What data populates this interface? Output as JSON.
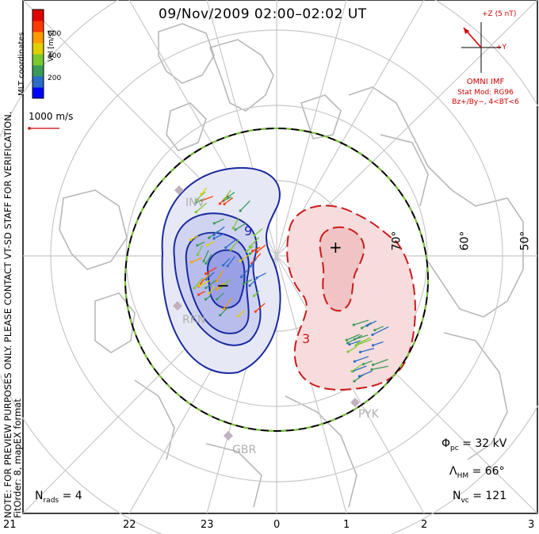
{
  "title": "09/Nov/2009 02:00–02:02 UT",
  "imf": {
    "bz_label": "+Z (5 nT)",
    "by_label": "+Y",
    "source": "OMNI IMF",
    "stat_model": "Stat Mod: RG96",
    "condition": "Bz+/By−, 4<BT<6"
  },
  "colorbar": {
    "title": "Vel [m/s]",
    "ticks": [
      "600",
      "400",
      "200"
    ],
    "colors": [
      "#0000ff",
      "#2a6cc8",
      "#3a9a5a",
      "#7ac930",
      "#e0d000",
      "#ff9a00",
      "#ff3a00",
      "#e00000"
    ]
  },
  "coordinates_label": "MLT coordinates",
  "vector_scale": "1000 m/s",
  "note_line1": "NOTE: FOR PREVIEW PURPOSES ONLY. PLEASE CONTACT VT-SD STAFF FOR VERIFICATION.",
  "note_line2": "FitOrder: 8, mapEX format",
  "latitude_labels": [
    "70°",
    "60°",
    "50°"
  ],
  "mlt_ticks": [
    "21",
    "22",
    "23",
    "0",
    "1",
    "2",
    "3"
  ],
  "sites": [
    "INV",
    "RKN",
    "GBR",
    "PYK"
  ],
  "potential_labels": {
    "negative_contour": "9",
    "positive_contour": "3",
    "minimum": "−",
    "maximum": "+"
  },
  "stats": {
    "phi_pc": {
      "symbol": "Φ",
      "sub": "pc",
      "value": "= 32 kV"
    },
    "lambda_hm": {
      "symbol": "Λ",
      "sub": "HM",
      "value": "= 66°"
    },
    "n_vc": {
      "symbol": "N",
      "sub": "vc",
      "value": "= 121"
    },
    "n_rads": {
      "symbol": "N",
      "sub": "rads",
      "value": "= 4"
    }
  },
  "colors": {
    "negative_cell": "#1a2aa0",
    "positive_cell": "#cc1a1a",
    "boundary_a": "#000000",
    "boundary_b": "#7ac930",
    "grid": "#c8c8c8",
    "coast": "#b8b8b8"
  }
}
